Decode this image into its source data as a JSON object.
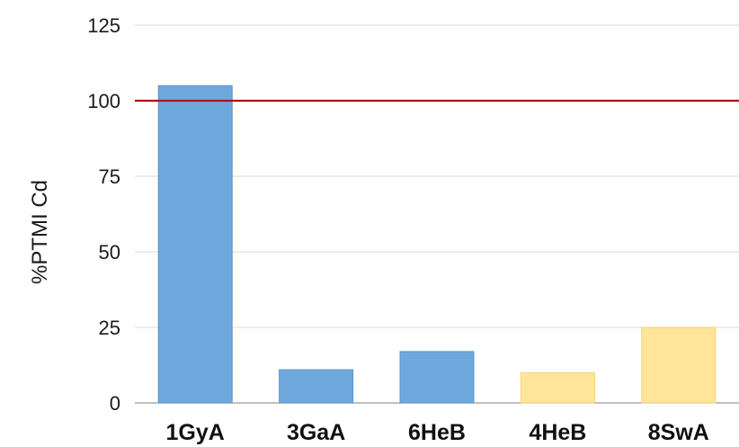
{
  "chart_data": {
    "type": "bar",
    "title": "",
    "xlabel": "",
    "ylabel": "%PTMI Cd",
    "categories": [
      "1GyA",
      "3GaA",
      "6HeB",
      "4HeB",
      "8SwA"
    ],
    "values": [
      105,
      11,
      17,
      10,
      25
    ],
    "bar_colors": [
      "#6fa8dc",
      "#6fa8dc",
      "#6fa8dc",
      "#ffe599",
      "#ffe599"
    ],
    "bar_edge_colors": [
      "#5b95cb",
      "#5b95cb",
      "#5b95cb",
      "#f1d57c",
      "#f1d57c"
    ],
    "ylim": [
      0,
      125
    ],
    "yticks": [
      0,
      25,
      50,
      75,
      100,
      125
    ],
    "grid": true,
    "reference_line": {
      "y": 100,
      "color": "#a4161a"
    }
  }
}
